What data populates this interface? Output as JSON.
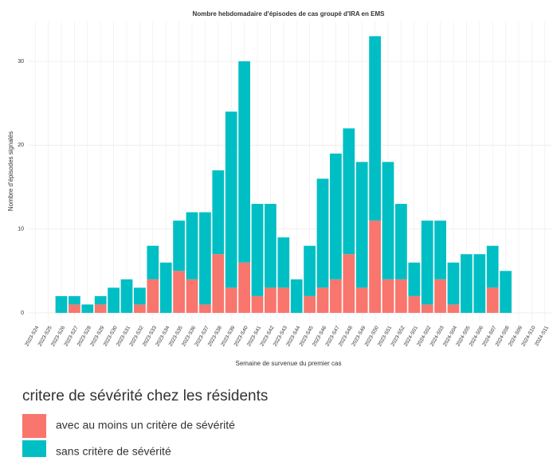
{
  "chart_data": {
    "type": "stacked_bar",
    "title": "Nombre hebdomadaire d'épisodes de cas groupé d'IRA en EMS",
    "x_label": "Semaine de survenue du premier cas",
    "y_label": "Nombre d'épisodes signalés",
    "categories": [
      "2023-S24",
      "2023-S25",
      "2023-S26",
      "2023-S27",
      "2023-S28",
      "2023-S29",
      "2023-S30",
      "2023-S31",
      "2023-S32",
      "2023-S33",
      "2023-S34",
      "2023-S35",
      "2023-S36",
      "2023-S37",
      "2023-S38",
      "2023-S39",
      "2023-S40",
      "2023-S41",
      "2023-S42",
      "2023-S43",
      "2023-S44",
      "2023-S45",
      "2023-S46",
      "2023-S47",
      "2023-S48",
      "2023-S49",
      "2023-S50",
      "2023-S51",
      "2023-S52",
      "2024-S01",
      "2024-S02",
      "2024-S03",
      "2024-S04",
      "2024-S05",
      "2024-S06",
      "2024-S07",
      "2024-S08",
      "2024-S09",
      "2024-S10",
      "2024-S11"
    ],
    "series": [
      {
        "name": "avec au moins un critère de sévérité",
        "color": "#f8766d",
        "values": [
          null,
          null,
          0,
          1,
          0,
          1,
          0,
          0,
          1,
          4,
          0,
          5,
          4,
          1,
          7,
          3,
          6,
          2,
          3,
          3,
          0,
          2,
          3,
          4,
          7,
          3,
          11,
          4,
          4,
          2,
          1,
          4,
          1,
          0,
          0,
          3,
          0,
          null,
          null,
          null
        ]
      },
      {
        "name": "sans critère de sévérité",
        "color": "#00bfc4",
        "values": [
          null,
          null,
          2,
          1,
          1,
          1,
          3,
          4,
          2,
          4,
          6,
          6,
          8,
          11,
          10,
          21,
          24,
          11,
          10,
          6,
          4,
          6,
          13,
          15,
          15,
          15,
          22,
          14,
          9,
          4,
          10,
          7,
          5,
          7,
          7,
          5,
          5,
          null,
          null,
          null
        ]
      }
    ],
    "legend_title": "critere de sévérité chez les résidents",
    "ylim": [
      -1.05,
      34.75
    ],
    "yticks": [
      0,
      10,
      20,
      30
    ],
    "grid": true
  }
}
